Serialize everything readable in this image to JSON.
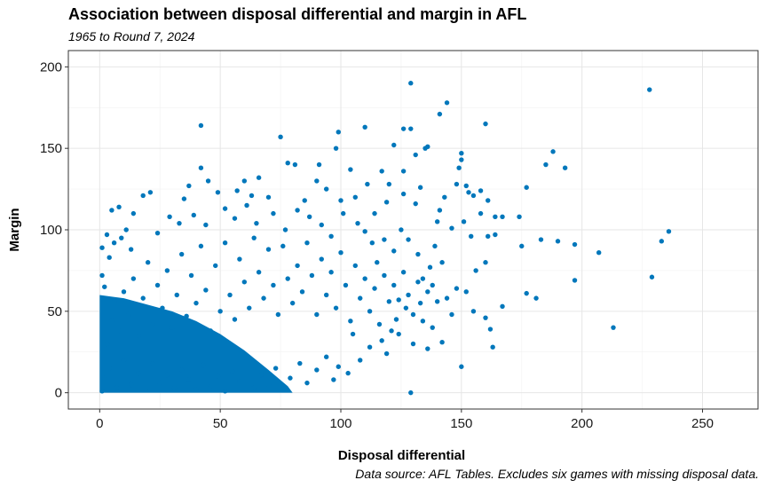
{
  "chart_data": {
    "type": "scatter",
    "title": "Association between disposal differential and margin in AFL",
    "subtitle": "1965 to Round 7, 2024",
    "xlabel": "Disposal differential",
    "ylabel": "Margin",
    "caption": "Data source: AFL Tables. Excludes six games with missing disposal data.",
    "xlim": [
      -13,
      273
    ],
    "ylim": [
      -10,
      210
    ],
    "x_ticks": [
      0,
      50,
      100,
      150,
      200,
      250
    ],
    "y_ticks": [
      0,
      50,
      100,
      150,
      200
    ],
    "grid": true,
    "point_color": "#0077BB",
    "series": [
      {
        "points": [
          [
            129,
            190
          ],
          [
            228,
            186
          ],
          [
            144,
            178
          ],
          [
            141,
            171
          ],
          [
            42,
            164
          ],
          [
            110,
            163
          ],
          [
            160,
            165
          ],
          [
            126,
            162
          ],
          [
            129,
            162
          ],
          [
            99,
            160
          ],
          [
            122,
            152
          ],
          [
            75,
            157
          ],
          [
            136,
            151
          ],
          [
            131,
            146
          ],
          [
            150,
            147
          ],
          [
            150,
            143
          ],
          [
            188,
            148
          ],
          [
            98,
            150
          ],
          [
            185,
            140
          ],
          [
            193,
            138
          ],
          [
            177,
            126
          ],
          [
            135,
            150
          ],
          [
            78,
            141
          ],
          [
            81,
            140
          ],
          [
            91,
            140
          ],
          [
            149,
            138
          ],
          [
            42,
            138
          ],
          [
            104,
            137
          ],
          [
            117,
            136
          ],
          [
            126,
            136
          ],
          [
            152,
            127
          ],
          [
            153,
            123
          ],
          [
            158,
            124
          ],
          [
            155,
            121
          ],
          [
            161,
            118
          ],
          [
            158,
            110
          ],
          [
            164,
            108
          ],
          [
            167,
            108
          ],
          [
            174,
            108
          ],
          [
            183,
            94
          ],
          [
            190,
            93
          ],
          [
            175,
            90
          ],
          [
            197,
            91
          ],
          [
            207,
            86
          ],
          [
            236,
            99
          ],
          [
            233,
            93
          ],
          [
            229,
            71
          ],
          [
            197,
            69
          ],
          [
            213,
            40
          ],
          [
            177,
            61
          ],
          [
            181,
            58
          ],
          [
            155,
            50
          ],
          [
            150,
            16
          ],
          [
            163,
            28
          ],
          [
            162,
            39
          ],
          [
            160,
            46
          ],
          [
            167,
            53
          ],
          [
            129,
            0
          ],
          [
            136,
            27
          ],
          [
            142,
            31
          ],
          [
            146,
            48
          ],
          [
            148,
            64
          ],
          [
            152,
            62
          ],
          [
            156,
            75
          ],
          [
            160,
            80
          ],
          [
            161,
            96
          ],
          [
            164,
            97
          ],
          [
            154,
            96
          ],
          [
            151,
            105
          ],
          [
            146,
            101
          ],
          [
            139,
            90
          ],
          [
            140,
            105
          ],
          [
            137,
            77
          ],
          [
            114,
            110
          ],
          [
            120,
            128
          ],
          [
            115,
            80
          ],
          [
            124,
            57
          ],
          [
            5,
            112
          ],
          [
            8,
            114
          ],
          [
            14,
            110
          ],
          [
            18,
            121
          ],
          [
            21,
            123
          ],
          [
            35,
            119
          ],
          [
            37,
            127
          ],
          [
            49,
            123
          ],
          [
            57,
            124
          ],
          [
            60,
            130
          ],
          [
            63,
            121
          ],
          [
            66,
            132
          ],
          [
            70,
            120
          ],
          [
            45,
            130
          ],
          [
            85,
            118
          ],
          [
            90,
            130
          ],
          [
            94,
            125
          ],
          [
            100,
            118
          ],
          [
            106,
            120
          ],
          [
            111,
            128
          ],
          [
            131,
            116
          ],
          [
            141,
            112
          ],
          [
            143,
            120
          ],
          [
            133,
            126
          ],
          [
            126,
            122
          ],
          [
            119,
            117
          ],
          [
            148,
            128
          ],
          [
            3,
            97
          ],
          [
            4,
            83
          ],
          [
            1,
            89
          ],
          [
            1,
            72
          ],
          [
            2,
            65
          ],
          [
            6,
            92
          ],
          [
            9,
            95
          ],
          [
            11,
            100
          ],
          [
            13,
            88
          ],
          [
            24,
            98
          ],
          [
            29,
            108
          ],
          [
            33,
            104
          ],
          [
            39,
            109
          ],
          [
            44,
            103
          ],
          [
            52,
            113
          ],
          [
            56,
            107
          ],
          [
            61,
            115
          ],
          [
            65,
            104
          ],
          [
            72,
            110
          ],
          [
            77,
            100
          ],
          [
            82,
            112
          ],
          [
            87,
            108
          ],
          [
            92,
            103
          ],
          [
            96,
            96
          ],
          [
            101,
            110
          ],
          [
            107,
            104
          ],
          [
            110,
            99
          ],
          [
            113,
            92
          ],
          [
            118,
            94
          ],
          [
            122,
            87
          ],
          [
            125,
            100
          ],
          [
            128,
            94
          ],
          [
            132,
            85
          ],
          [
            134,
            70
          ],
          [
            138,
            66
          ],
          [
            142,
            80
          ],
          [
            144,
            58
          ],
          [
            133,
            55
          ],
          [
            127,
            52
          ],
          [
            130,
            48
          ],
          [
            123,
            45
          ],
          [
            121,
            38
          ],
          [
            117,
            32
          ],
          [
            119,
            24
          ],
          [
            112,
            28
          ],
          [
            108,
            20
          ],
          [
            103,
            12
          ],
          [
            99,
            16
          ],
          [
            97,
            8
          ],
          [
            94,
            22
          ],
          [
            105,
            36
          ],
          [
            90,
            14
          ],
          [
            86,
            6
          ],
          [
            83,
            18
          ],
          [
            79,
            9
          ],
          [
            76,
            2
          ],
          [
            73,
            15
          ],
          [
            70,
            5
          ],
          [
            67,
            11
          ],
          [
            64,
            3
          ],
          [
            61,
            20
          ],
          [
            58,
            7
          ],
          [
            55,
            13
          ],
          [
            52,
            1
          ],
          [
            49,
            10
          ],
          [
            46,
            4
          ],
          [
            43,
            17
          ],
          [
            40,
            2
          ],
          [
            37,
            8
          ],
          [
            34,
            14
          ],
          [
            31,
            3
          ],
          [
            28,
            11
          ],
          [
            25,
            6
          ],
          [
            22,
            18
          ],
          [
            19,
            2
          ],
          [
            16,
            12
          ],
          [
            13,
            5
          ],
          [
            10,
            20
          ],
          [
            7,
            3
          ],
          [
            4,
            15
          ],
          [
            1,
            1
          ],
          [
            2,
            9
          ],
          [
            3,
            30
          ],
          [
            5,
            44
          ],
          [
            6,
            56
          ],
          [
            8,
            38
          ],
          [
            10,
            62
          ],
          [
            12,
            48
          ],
          [
            14,
            70
          ],
          [
            16,
            35
          ],
          [
            18,
            58
          ],
          [
            20,
            80
          ],
          [
            22,
            42
          ],
          [
            24,
            66
          ],
          [
            26,
            52
          ],
          [
            28,
            75
          ],
          [
            30,
            40
          ],
          [
            32,
            60
          ],
          [
            34,
            85
          ],
          [
            36,
            47
          ],
          [
            38,
            72
          ],
          [
            40,
            55
          ],
          [
            42,
            90
          ],
          [
            44,
            63
          ],
          [
            46,
            38
          ],
          [
            48,
            78
          ],
          [
            50,
            50
          ],
          [
            52,
            92
          ],
          [
            54,
            60
          ],
          [
            56,
            45
          ],
          [
            58,
            82
          ],
          [
            60,
            68
          ],
          [
            62,
            52
          ],
          [
            64,
            95
          ],
          [
            66,
            74
          ],
          [
            68,
            58
          ],
          [
            70,
            88
          ],
          [
            72,
            66
          ],
          [
            74,
            48
          ],
          [
            76,
            90
          ],
          [
            78,
            70
          ],
          [
            80,
            55
          ],
          [
            82,
            78
          ],
          [
            84,
            62
          ],
          [
            86,
            92
          ],
          [
            88,
            72
          ],
          [
            90,
            48
          ],
          [
            92,
            82
          ],
          [
            94,
            60
          ],
          [
            96,
            74
          ],
          [
            98,
            52
          ],
          [
            100,
            86
          ],
          [
            102,
            66
          ],
          [
            104,
            44
          ],
          [
            106,
            78
          ],
          [
            108,
            58
          ],
          [
            110,
            70
          ],
          [
            112,
            50
          ],
          [
            114,
            64
          ],
          [
            116,
            42
          ],
          [
            118,
            72
          ],
          [
            120,
            56
          ],
          [
            122,
            66
          ],
          [
            124,
            36
          ],
          [
            126,
            74
          ],
          [
            128,
            60
          ],
          [
            130,
            30
          ],
          [
            132,
            68
          ],
          [
            134,
            44
          ],
          [
            136,
            62
          ],
          [
            138,
            40
          ],
          [
            140,
            56
          ]
        ]
      }
    ]
  }
}
